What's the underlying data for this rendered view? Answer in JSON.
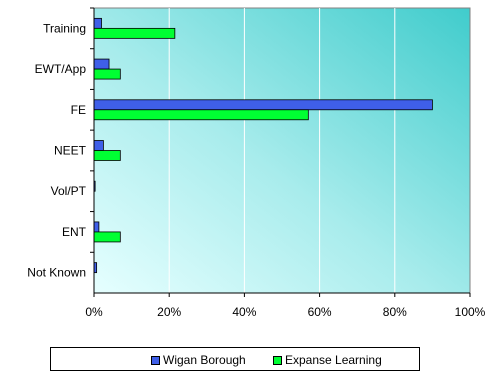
{
  "chart_data": {
    "type": "bar",
    "orientation": "horizontal",
    "categories": [
      "Training",
      "EWT/App",
      "FE",
      "NEET",
      "Vol/PT",
      "ENT",
      "Not Known"
    ],
    "series": [
      {
        "name": "Wigan Borough",
        "color": "#3f5fe8",
        "values": [
          2,
          4,
          90,
          2.5,
          0.3,
          1.3,
          0.7
        ]
      },
      {
        "name": "Expanse Learning",
        "color": "#00ff33",
        "values": [
          21.5,
          7,
          57,
          7,
          0,
          7,
          0
        ]
      }
    ],
    "x_ticks": [
      "0%",
      "20%",
      "40%",
      "60%",
      "80%",
      "100%"
    ],
    "xlim": [
      0,
      100
    ],
    "grid": "vertical",
    "legend_position": "bottom",
    "title": "",
    "xlabel": "",
    "ylabel": ""
  }
}
